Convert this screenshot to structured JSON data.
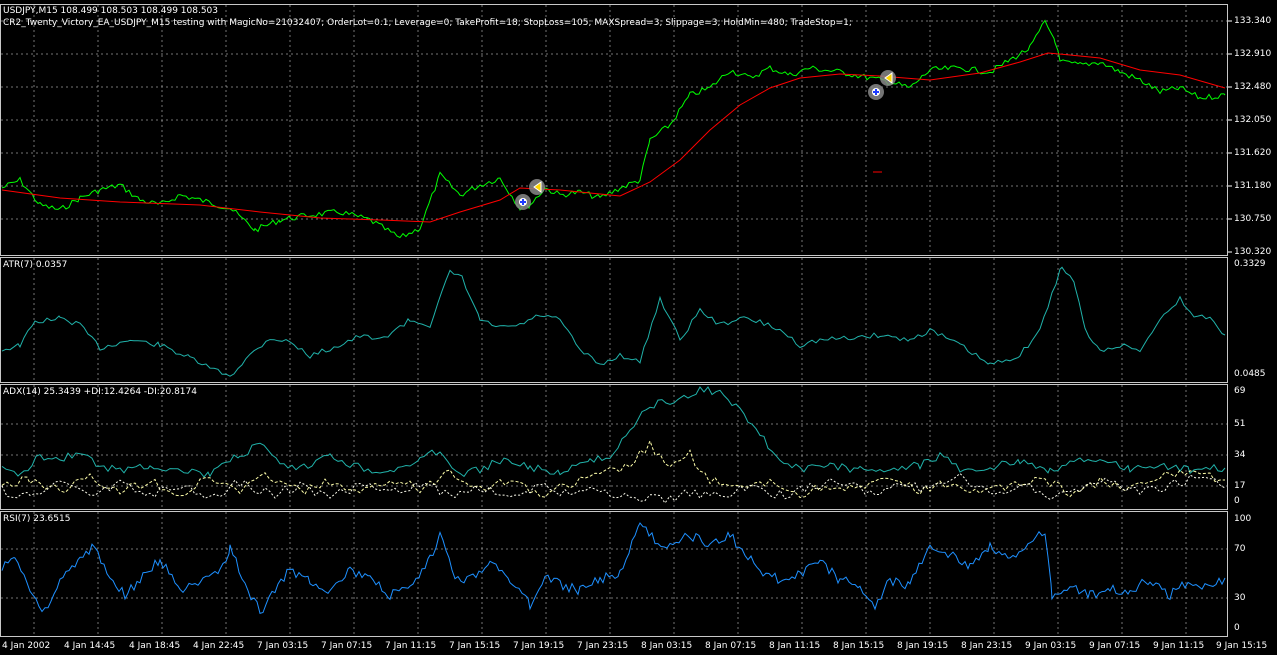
{
  "main": {
    "symbol_line": "USDJPY,M15  108.499 108.503 108.499 108.503",
    "ea_line": "CR2_Twenty_Victory_EA_USDJPY_M15 testing with MagicNo=21032407; OrderLot=0.1; Leverage=0; TakeProfit=18; StopLoss=105; MAXSpread=3; Slippage=3; HoldMin=480; TradeStop=1;",
    "price_axis": [
      "133.340",
      "132.910",
      "132.480",
      "132.050",
      "131.620",
      "131.180",
      "130.750",
      "130.320"
    ]
  },
  "atr": {
    "label": "ATR(7) 0.0357",
    "axis": [
      "0.3329",
      "0.0485"
    ]
  },
  "adx": {
    "label": "ADX(14) 25.3439 +DI:12.4264 -DI:20.8174",
    "axis": [
      "69",
      "51",
      "34",
      "17",
      "0"
    ]
  },
  "rsi": {
    "label": "RSI(7) 23.6515",
    "axis": [
      "100",
      "70",
      "30",
      "0"
    ]
  },
  "time_axis": [
    "4 Jan 2002",
    "4 Jan 14:45",
    "4 Jan 18:45",
    "4 Jan 22:45",
    "7 Jan 03:15",
    "7 Jan 07:15",
    "7 Jan 11:15",
    "7 Jan 15:15",
    "7 Jan 19:15",
    "7 Jan 23:15",
    "8 Jan 03:15",
    "8 Jan 07:15",
    "8 Jan 11:15",
    "8 Jan 15:15",
    "8 Jan 19:15",
    "8 Jan 23:15",
    "9 Jan 03:15",
    "9 Jan 07:15",
    "9 Jan 11:15",
    "9 Jan 15:15"
  ],
  "colors": {
    "background": "#000000",
    "grid": "#c0c0c0",
    "price": "#00ff00",
    "ma": "#ff0000",
    "atr": "#20b2aa",
    "adx": "#20b2aa",
    "plus_di": "#ffffaa",
    "minus_di": "#fffff0",
    "rsi": "#1e90ff"
  },
  "trade_markers": [
    {
      "type": "buy",
      "icon": "buy-arrow-icon"
    },
    {
      "type": "close",
      "icon": "close-arrow-icon"
    },
    {
      "type": "buy",
      "icon": "buy-arrow-icon"
    },
    {
      "type": "close",
      "icon": "close-arrow-icon"
    }
  ]
}
